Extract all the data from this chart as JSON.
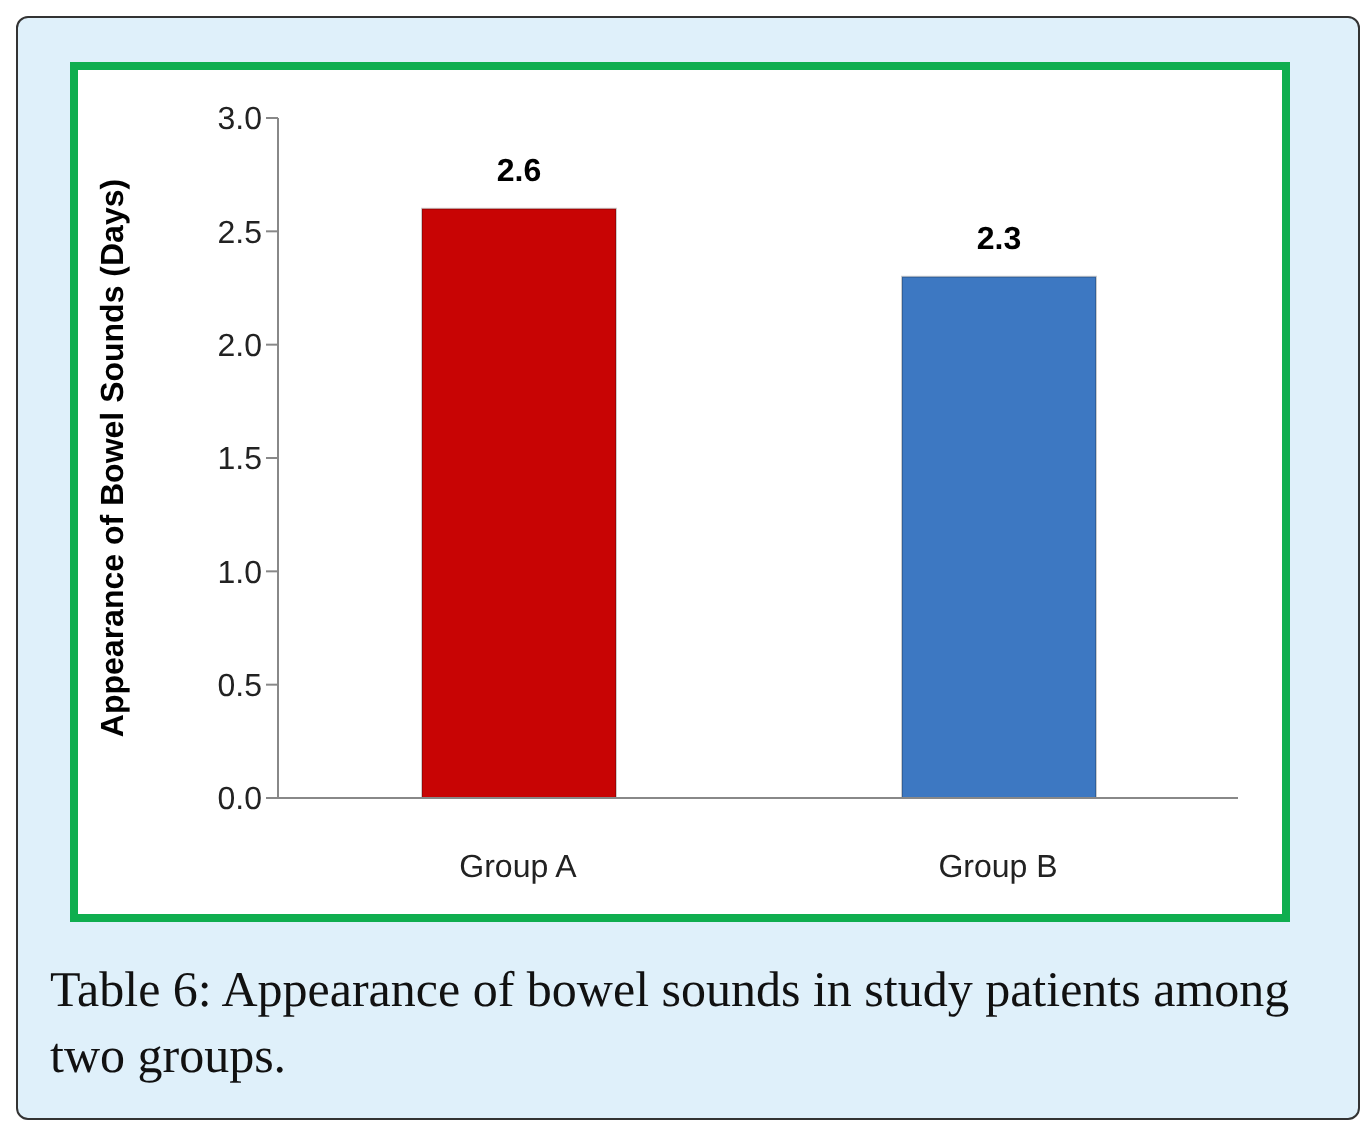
{
  "chart_data": {
    "type": "bar",
    "ylabel": "Appearance of Bowel Sounds (Days)",
    "categories": [
      "Group A",
      "Group B"
    ],
    "values": [
      2.6,
      2.3
    ],
    "colors": [
      "#c80404",
      "#3d78c2"
    ],
    "ylim": [
      0,
      3
    ],
    "yticks": [
      {
        "value": 0,
        "label": "0.0"
      },
      {
        "value": 0.5,
        "label": "0.5"
      },
      {
        "value": 1,
        "label": "1.0"
      },
      {
        "value": 1.5,
        "label": "1.5"
      },
      {
        "value": 2,
        "label": "2.0"
      },
      {
        "value": 2.5,
        "label": "2.5"
      },
      {
        "value": 3,
        "label": "3.0"
      }
    ],
    "data_labels": true,
    "grid": false,
    "legend": false,
    "annotations": [
      "Table 6: Appearance of bowel sounds in study patients among two groups."
    ]
  }
}
